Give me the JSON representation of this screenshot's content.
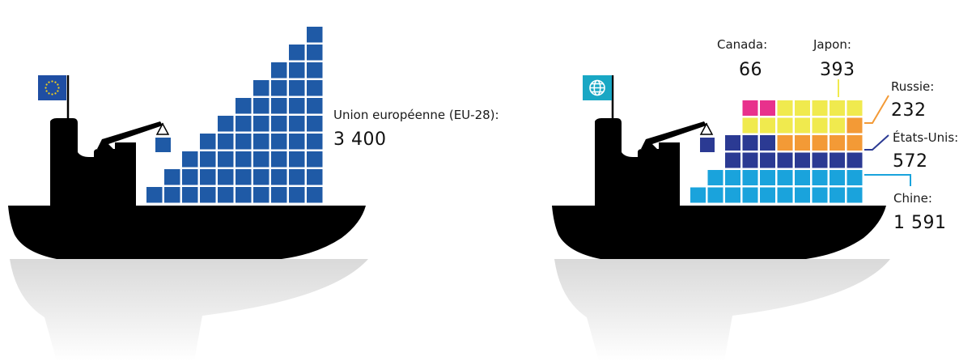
{
  "chart_data": [
    {
      "type": "bar",
      "title": "",
      "flag_icon": "eu-flag-icon",
      "series": [
        {
          "name": "Union européenne (EU-28):",
          "value_label": "3 400",
          "value": 3400,
          "color": "#1f5aa6"
        }
      ]
    },
    {
      "type": "bar",
      "title": "",
      "flag_icon": "globe-flag-icon",
      "series": [
        {
          "name": "Chine:",
          "value_label": "1 591",
          "value": 1591,
          "color": "#1aa3dc"
        },
        {
          "name": "États-Unis:",
          "value_label": "572",
          "value": 572,
          "color": "#2b3a93"
        },
        {
          "name": "Russie:",
          "value_label": "232",
          "value": 232,
          "color": "#f39a36"
        },
        {
          "name": "Japon:",
          "value_label": "393",
          "value": 393,
          "color": "#f0ea4e"
        },
        {
          "name": "Canada:",
          "value_label": "66",
          "value": 66,
          "color": "#e8318c"
        }
      ]
    }
  ],
  "colors": {
    "ship": "#000000",
    "eu_flag": "#1f4ea3",
    "eu_stars": "#f7d117",
    "globe_flag": "#19a7c4"
  }
}
